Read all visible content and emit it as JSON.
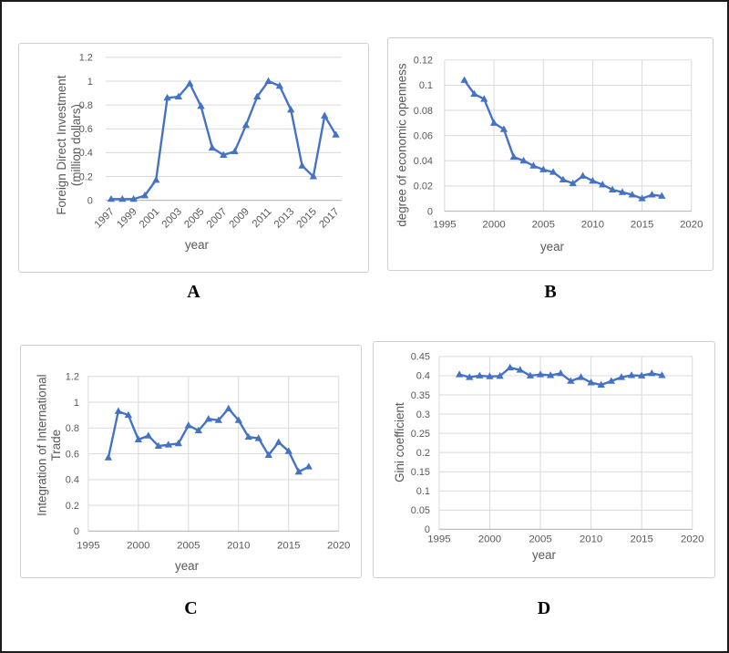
{
  "figure": {
    "description": "Four-panel line chart figure",
    "line_color": "#4472C4",
    "grid_color": "#D9D9D9",
    "axis_color": "#BFBFBF",
    "text_color": "#595959",
    "panel_border_color": "#D0D0D0",
    "frame_border_color": "#1B1B1B"
  },
  "chart_data": [
    {
      "panel": "A",
      "caption": "A",
      "type": "line",
      "marker": "triangle",
      "line_color": "#4472C4",
      "xlabel": "year",
      "ylabel_lines": [
        "Foreign Direct Investment",
        "(million dollars)"
      ],
      "x": [
        1997,
        1998,
        1999,
        2000,
        2001,
        2002,
        2003,
        2004,
        2005,
        2006,
        2007,
        2008,
        2009,
        2010,
        2011,
        2012,
        2013,
        2014,
        2015,
        2016,
        2017
      ],
      "values": [
        0.01,
        0.01,
        0.01,
        0.04,
        0.17,
        0.86,
        0.87,
        0.98,
        0.79,
        0.44,
        0.38,
        0.41,
        0.63,
        0.87,
        1.0,
        0.96,
        0.76,
        0.29,
        0.2,
        0.71,
        0.55
      ],
      "ylim": [
        0,
        1.2
      ],
      "yticks": [
        0,
        0.2,
        0.4,
        0.6,
        0.8,
        1,
        1.2
      ],
      "ytick_labels": [
        "0",
        "0.2",
        "0.4",
        "0.6",
        "0.8",
        "1",
        "1.2"
      ],
      "xaxis": {
        "mode": "category",
        "label_every": 2,
        "label_rotation": -45
      },
      "grid": {
        "horizontal": true,
        "vertical": false
      }
    },
    {
      "panel": "B",
      "caption": "B",
      "type": "line",
      "marker": "triangle",
      "line_color": "#4472C4",
      "xlabel": "year",
      "ylabel_lines": [
        "degree of economic openness"
      ],
      "x": [
        1997,
        1998,
        1999,
        2000,
        2001,
        2002,
        2003,
        2004,
        2005,
        2006,
        2007,
        2008,
        2009,
        2010,
        2011,
        2012,
        2013,
        2014,
        2015,
        2016,
        2017
      ],
      "values": [
        0.104,
        0.093,
        0.089,
        0.07,
        0.065,
        0.043,
        0.04,
        0.036,
        0.033,
        0.031,
        0.025,
        0.022,
        0.028,
        0.024,
        0.021,
        0.017,
        0.015,
        0.013,
        0.01,
        0.013,
        0.012
      ],
      "ylim": [
        0,
        0.12
      ],
      "yticks": [
        0,
        0.02,
        0.04,
        0.06,
        0.08,
        0.1,
        0.12
      ],
      "ytick_labels": [
        "0",
        "0.02",
        "0.04",
        "0.06",
        "0.08",
        "0.1",
        "0.12"
      ],
      "xaxis": {
        "mode": "linear",
        "lim": [
          1995,
          2020
        ],
        "ticks": [
          1995,
          2000,
          2005,
          2010,
          2015,
          2020
        ],
        "tick_labels": [
          "1995",
          "2000",
          "2005",
          "2010",
          "2015",
          "2020"
        ]
      },
      "grid": {
        "horizontal": true,
        "vertical": true
      }
    },
    {
      "panel": "C",
      "caption": "C",
      "type": "line",
      "marker": "triangle",
      "line_color": "#4472C4",
      "xlabel": "year",
      "ylabel_lines": [
        "Integration of International",
        "Trade"
      ],
      "x": [
        1997,
        1998,
        1999,
        2000,
        2001,
        2002,
        2003,
        2004,
        2005,
        2006,
        2007,
        2008,
        2009,
        2010,
        2011,
        2012,
        2013,
        2014,
        2015,
        2016,
        2017
      ],
      "values": [
        0.57,
        0.93,
        0.9,
        0.71,
        0.74,
        0.66,
        0.67,
        0.68,
        0.82,
        0.78,
        0.87,
        0.86,
        0.95,
        0.86,
        0.73,
        0.72,
        0.59,
        0.69,
        0.62,
        0.46,
        0.5
      ],
      "ylim": [
        0,
        1.2
      ],
      "yticks": [
        0,
        0.2,
        0.4,
        0.6,
        0.8,
        1,
        1.2
      ],
      "ytick_labels": [
        "0",
        "0.2",
        "0.4",
        "0.6",
        "0.8",
        "1",
        "1.2"
      ],
      "xaxis": {
        "mode": "linear",
        "lim": [
          1995,
          2020
        ],
        "ticks": [
          1995,
          2000,
          2005,
          2010,
          2015,
          2020
        ],
        "tick_labels": [
          "1995",
          "2000",
          "2005",
          "2010",
          "2015",
          "2020"
        ]
      },
      "grid": {
        "horizontal": true,
        "vertical": true
      }
    },
    {
      "panel": "D",
      "caption": "D",
      "type": "line",
      "marker": "triangle",
      "line_color": "#4472C4",
      "xlabel": "year",
      "ylabel_lines": [
        "Gini coefficient"
      ],
      "x": [
        1997,
        1998,
        1999,
        2000,
        2001,
        2002,
        2003,
        2004,
        2005,
        2006,
        2007,
        2008,
        2009,
        2010,
        2011,
        2012,
        2013,
        2014,
        2015,
        2016,
        2017
      ],
      "values": [
        0.403,
        0.396,
        0.4,
        0.398,
        0.399,
        0.421,
        0.415,
        0.4,
        0.403,
        0.401,
        0.406,
        0.386,
        0.396,
        0.382,
        0.376,
        0.386,
        0.396,
        0.401,
        0.4,
        0.406,
        0.401
      ],
      "ylim": [
        0,
        0.45
      ],
      "yticks": [
        0,
        0.05,
        0.1,
        0.15,
        0.2,
        0.25,
        0.3,
        0.35,
        0.4,
        0.45
      ],
      "ytick_labels": [
        "0",
        "0.05",
        "0.1",
        "0.15",
        "0.2",
        "0.25",
        "0.3",
        "0.35",
        "0.4",
        "0.45"
      ],
      "xaxis": {
        "mode": "linear",
        "lim": [
          1995,
          2020
        ],
        "ticks": [
          1995,
          2000,
          2005,
          2010,
          2015,
          2020
        ],
        "tick_labels": [
          "1995",
          "2000",
          "2005",
          "2010",
          "2015",
          "2020"
        ]
      },
      "grid": {
        "horizontal": true,
        "vertical": true
      }
    }
  ]
}
